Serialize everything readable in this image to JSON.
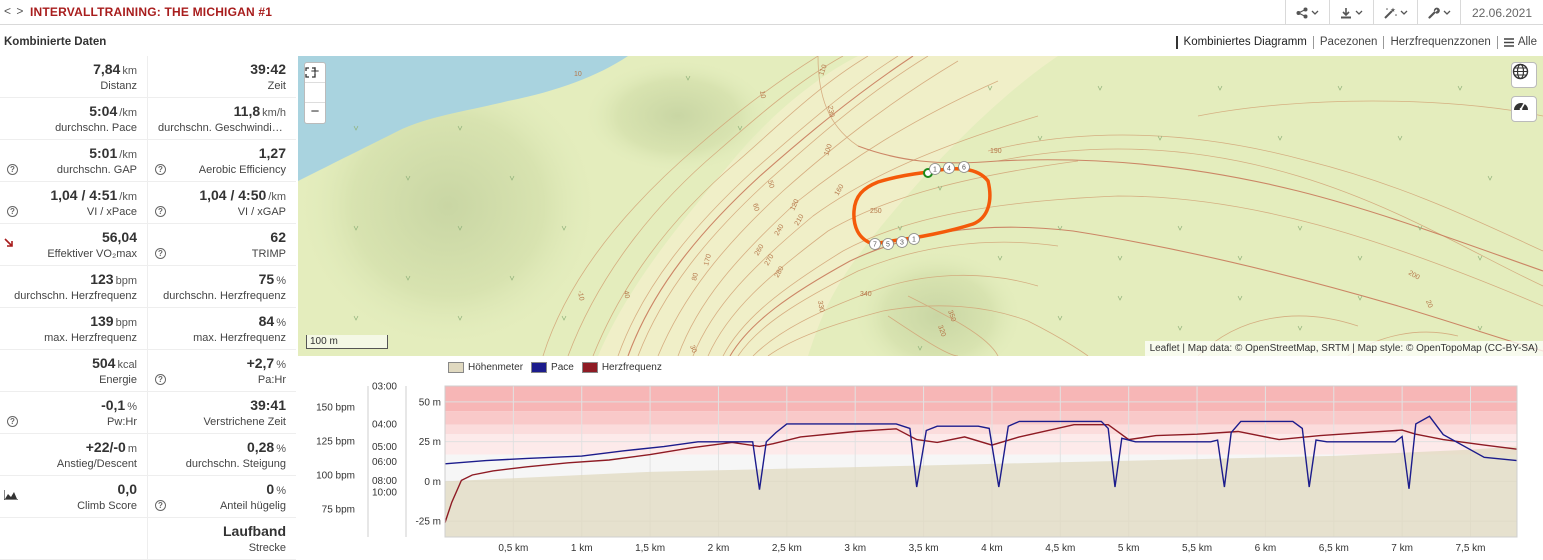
{
  "header": {
    "nav_prev": "<",
    "nav_next": ">",
    "title": "INTERVALLTRAINING: THE MICHIGAN #1",
    "toolbar": [
      {
        "icon": "share-icon",
        "has_dropdown": true
      },
      {
        "icon": "download-icon",
        "has_dropdown": true
      },
      {
        "icon": "magic-wand-icon",
        "has_dropdown": true
      },
      {
        "icon": "wrench-icon",
        "has_dropdown": true
      }
    ],
    "date": "22.06.2021"
  },
  "left_panel": {
    "title": "Kombinierte Daten",
    "rows": [
      {
        "left": {
          "value": "7,84",
          "unit": "km",
          "label": "Distanz",
          "help": false
        },
        "right": {
          "value": "39:42",
          "unit": "",
          "label": "Zeit",
          "help": false
        }
      },
      {
        "left": {
          "value": "5:04",
          "unit": "/km",
          "label": "durchschn. Pace",
          "help": false
        },
        "right": {
          "value": "11,8",
          "unit": "km/h",
          "label": "durchschn. Geschwindigkeit",
          "help": false
        }
      },
      {
        "left": {
          "value": "5:01",
          "unit": "/km",
          "label": "durchschn. GAP",
          "help": true
        },
        "right": {
          "value": "1,27",
          "unit": "",
          "label": "Aerobic Efficiency",
          "help": true
        }
      },
      {
        "left": {
          "value": "1,04 / 4:51",
          "unit": "/km",
          "label": "VI / xPace",
          "help": true
        },
        "right": {
          "value": "1,04 / 4:50",
          "unit": "/km",
          "label": "VI / xGAP",
          "help": true
        }
      },
      {
        "left": {
          "value": "56,04",
          "unit": "",
          "label": "Effektiver VO₂max",
          "help": false,
          "icon": "trend-down-arrow-icon"
        },
        "right": {
          "value": "62",
          "unit": "",
          "label": "TRIMP",
          "help": true
        }
      },
      {
        "left": {
          "value": "123",
          "unit": "bpm",
          "label": "durchschn. Herzfrequenz",
          "help": false
        },
        "right": {
          "value": "75",
          "unit": "%",
          "label": "durchschn. Herzfrequenz",
          "help": false
        }
      },
      {
        "left": {
          "value": "139",
          "unit": "bpm",
          "label": "max. Herzfrequenz",
          "help": false
        },
        "right": {
          "value": "84",
          "unit": "%",
          "label": "max. Herzfrequenz",
          "help": false
        }
      },
      {
        "left": {
          "value": "504",
          "unit": "kcal",
          "label": "Energie",
          "help": false
        },
        "right": {
          "value": "+2,7",
          "unit": "%",
          "label": "Pa:Hr",
          "help": true
        }
      },
      {
        "left": {
          "value": "-0,1",
          "unit": "%",
          "label": "Pw:Hr",
          "help": true
        },
        "right": {
          "value": "39:41",
          "unit": "",
          "label": "Verstrichene Zeit",
          "help": false
        }
      },
      {
        "left": {
          "value": "+22/-0",
          "unit": "m",
          "label": "Anstieg/Descent",
          "help": false
        },
        "right": {
          "value": "0,28",
          "unit": "%",
          "label": "durchschn. Steigung",
          "help": false
        }
      },
      {
        "left": {
          "value": "0,0",
          "unit": "",
          "label": "Climb Score",
          "help": false,
          "icon": "mountain-chart-icon"
        },
        "right": {
          "value": "0",
          "unit": "%",
          "label": "Anteil hügelig",
          "help": true
        }
      },
      {
        "left": null,
        "right": {
          "value": "Laufband",
          "unit": "",
          "label": "Strecke",
          "help": false
        }
      }
    ]
  },
  "view_tabs": {
    "combined": "Kombiniertes Diagramm",
    "pace_zones": "Pacezonen",
    "hr_zones": "Herzfrequenzzonen",
    "all": "Alle"
  },
  "map": {
    "zoom_in": "+",
    "zoom_out": "−",
    "fullscreen_icon": "fullscreen-icon",
    "layer_icon": "globe-icon",
    "gauge_icon": "gauge-icon",
    "scale": "100 m",
    "attribution": "Leaflet | Map data: © OpenStreetMap, SRTM | Map style: © OpenTopoMap (CC-BY-SA)",
    "contour_labels": [
      "10",
      "20",
      "30",
      "40",
      "50",
      "60",
      "80",
      "100",
      "110",
      "120",
      "160",
      "170",
      "190",
      "200",
      "210",
      "230",
      "240",
      "250",
      "260",
      "270",
      "280",
      "320",
      "330",
      "340",
      "350",
      "-10"
    ],
    "km_markers": [
      "1",
      "3",
      "4",
      "5",
      "6",
      "7"
    ],
    "route_color": "#f45a0a",
    "water_color": "#a9d3df"
  },
  "chart_data": {
    "type": "line",
    "legend": [
      {
        "name": "Höhenmeter",
        "color": "#e0d9c0"
      },
      {
        "name": "Pace",
        "color": "#1c1c8c"
      },
      {
        "name": "Herzfrequenz",
        "color": "#8e1b24"
      }
    ],
    "hr_axis": {
      "ticks": [
        "150 bpm",
        "125 bpm",
        "100 bpm",
        "75 bpm"
      ],
      "values": [
        150,
        125,
        100,
        75
      ]
    },
    "pace_axis": {
      "ticks": [
        "03:00",
        "04:00",
        "05:00",
        "06:00",
        "08:00",
        "10:00"
      ],
      "values_sec_per_km": [
        180,
        240,
        300,
        360,
        480,
        600
      ]
    },
    "elev_axis": {
      "ticks": [
        "50 m",
        "25 m",
        "0 m",
        "-25 m"
      ],
      "values": [
        50,
        25,
        0,
        -25
      ],
      "ylim": [
        -35,
        60
      ]
    },
    "x_axis": {
      "ticks": [
        "0,5 km",
        "1 km",
        "1,5 km",
        "2 km",
        "2,5 km",
        "3 km",
        "3,5 km",
        "4 km",
        "4,5 km",
        "5 km",
        "5,5 km",
        "6 km",
        "6,5 km",
        "7 km",
        "7,5 km"
      ],
      "values": [
        0.5,
        1,
        1.5,
        2,
        2.5,
        3,
        3.5,
        4,
        4.5,
        5,
        5.5,
        6,
        6.5,
        7,
        7.5
      ],
      "xlim": [
        0,
        7.84
      ]
    },
    "hr_zone_colors": [
      "#f7b6b6",
      "#f9c9c9",
      "#fbdcdc",
      "#fdeaea",
      "#f6f6f6"
    ],
    "hr_zone_bounds_bpm": [
      155,
      147,
      137,
      130,
      115,
      60
    ],
    "series": [
      {
        "name": "Höhenmeter",
        "unit": "m",
        "x": [
          0,
          0.5,
          1,
          1.5,
          2,
          2.5,
          3,
          3.5,
          4,
          4.5,
          5,
          5.5,
          6,
          6.5,
          7,
          7.5,
          7.84
        ],
        "values": [
          0,
          2,
          4,
          6,
          7,
          8,
          9,
          10,
          11,
          12,
          13,
          14,
          15,
          16,
          18,
          20,
          22
        ]
      },
      {
        "name": "Pace",
        "unit": "min/km",
        "x": [
          0,
          0.3,
          0.6,
          1.0,
          1.3,
          1.6,
          1.85,
          2.1,
          2.25,
          2.3,
          2.35,
          2.42,
          2.5,
          3.0,
          3.3,
          3.4,
          3.45,
          3.52,
          3.6,
          3.9,
          3.98,
          4.05,
          4.12,
          4.2,
          4.8,
          4.85,
          4.9,
          4.95,
          5.05,
          5.6,
          5.65,
          5.7,
          5.75,
          5.82,
          6.2,
          6.27,
          6.32,
          6.37,
          6.45,
          6.95,
          7.0,
          7.05,
          7.1,
          7.2,
          7.3,
          7.6,
          7.84
        ],
        "values": [
          "06:10",
          "05:55",
          "05:45",
          "05:35",
          "05:15",
          "05:00",
          "04:45",
          "04:45",
          "04:45",
          "09:30",
          "04:45",
          "04:20",
          "04:00",
          "04:00",
          "04:00",
          "04:10",
          "09:00",
          "04:15",
          "04:05",
          "04:05",
          "04:10",
          "09:00",
          "04:05",
          "03:55",
          "03:55",
          "04:10",
          "09:00",
          "04:35",
          "04:45",
          "04:45",
          "04:40",
          "09:00",
          "04:20",
          "03:55",
          "03:55",
          "04:10",
          "09:00",
          "04:40",
          "04:45",
          "04:45",
          "04:30",
          "09:20",
          "04:00",
          "03:45",
          "04:25",
          "05:40",
          "05:55"
        ]
      },
      {
        "name": "Herzfrequenz",
        "unit": "bpm",
        "x": [
          0,
          0.05,
          0.12,
          0.2,
          0.35,
          0.6,
          0.9,
          1.2,
          1.5,
          1.8,
          2.1,
          2.3,
          2.4,
          2.6,
          3.0,
          3.3,
          3.45,
          3.6,
          3.8,
          4.0,
          4.2,
          4.6,
          4.85,
          5.0,
          5.2,
          5.5,
          5.8,
          6.1,
          6.4,
          6.7,
          7.0,
          7.1,
          7.3,
          7.6,
          7.84
        ],
        "values": [
          65,
          80,
          96,
          100,
          103,
          106,
          109,
          111,
          115,
          120,
          124,
          121,
          123,
          128,
          132,
          134,
          126,
          124,
          128,
          122,
          128,
          137,
          137,
          126,
          129,
          130,
          132,
          126,
          129,
          131,
          133,
          130,
          126,
          122,
          119
        ]
      }
    ]
  }
}
